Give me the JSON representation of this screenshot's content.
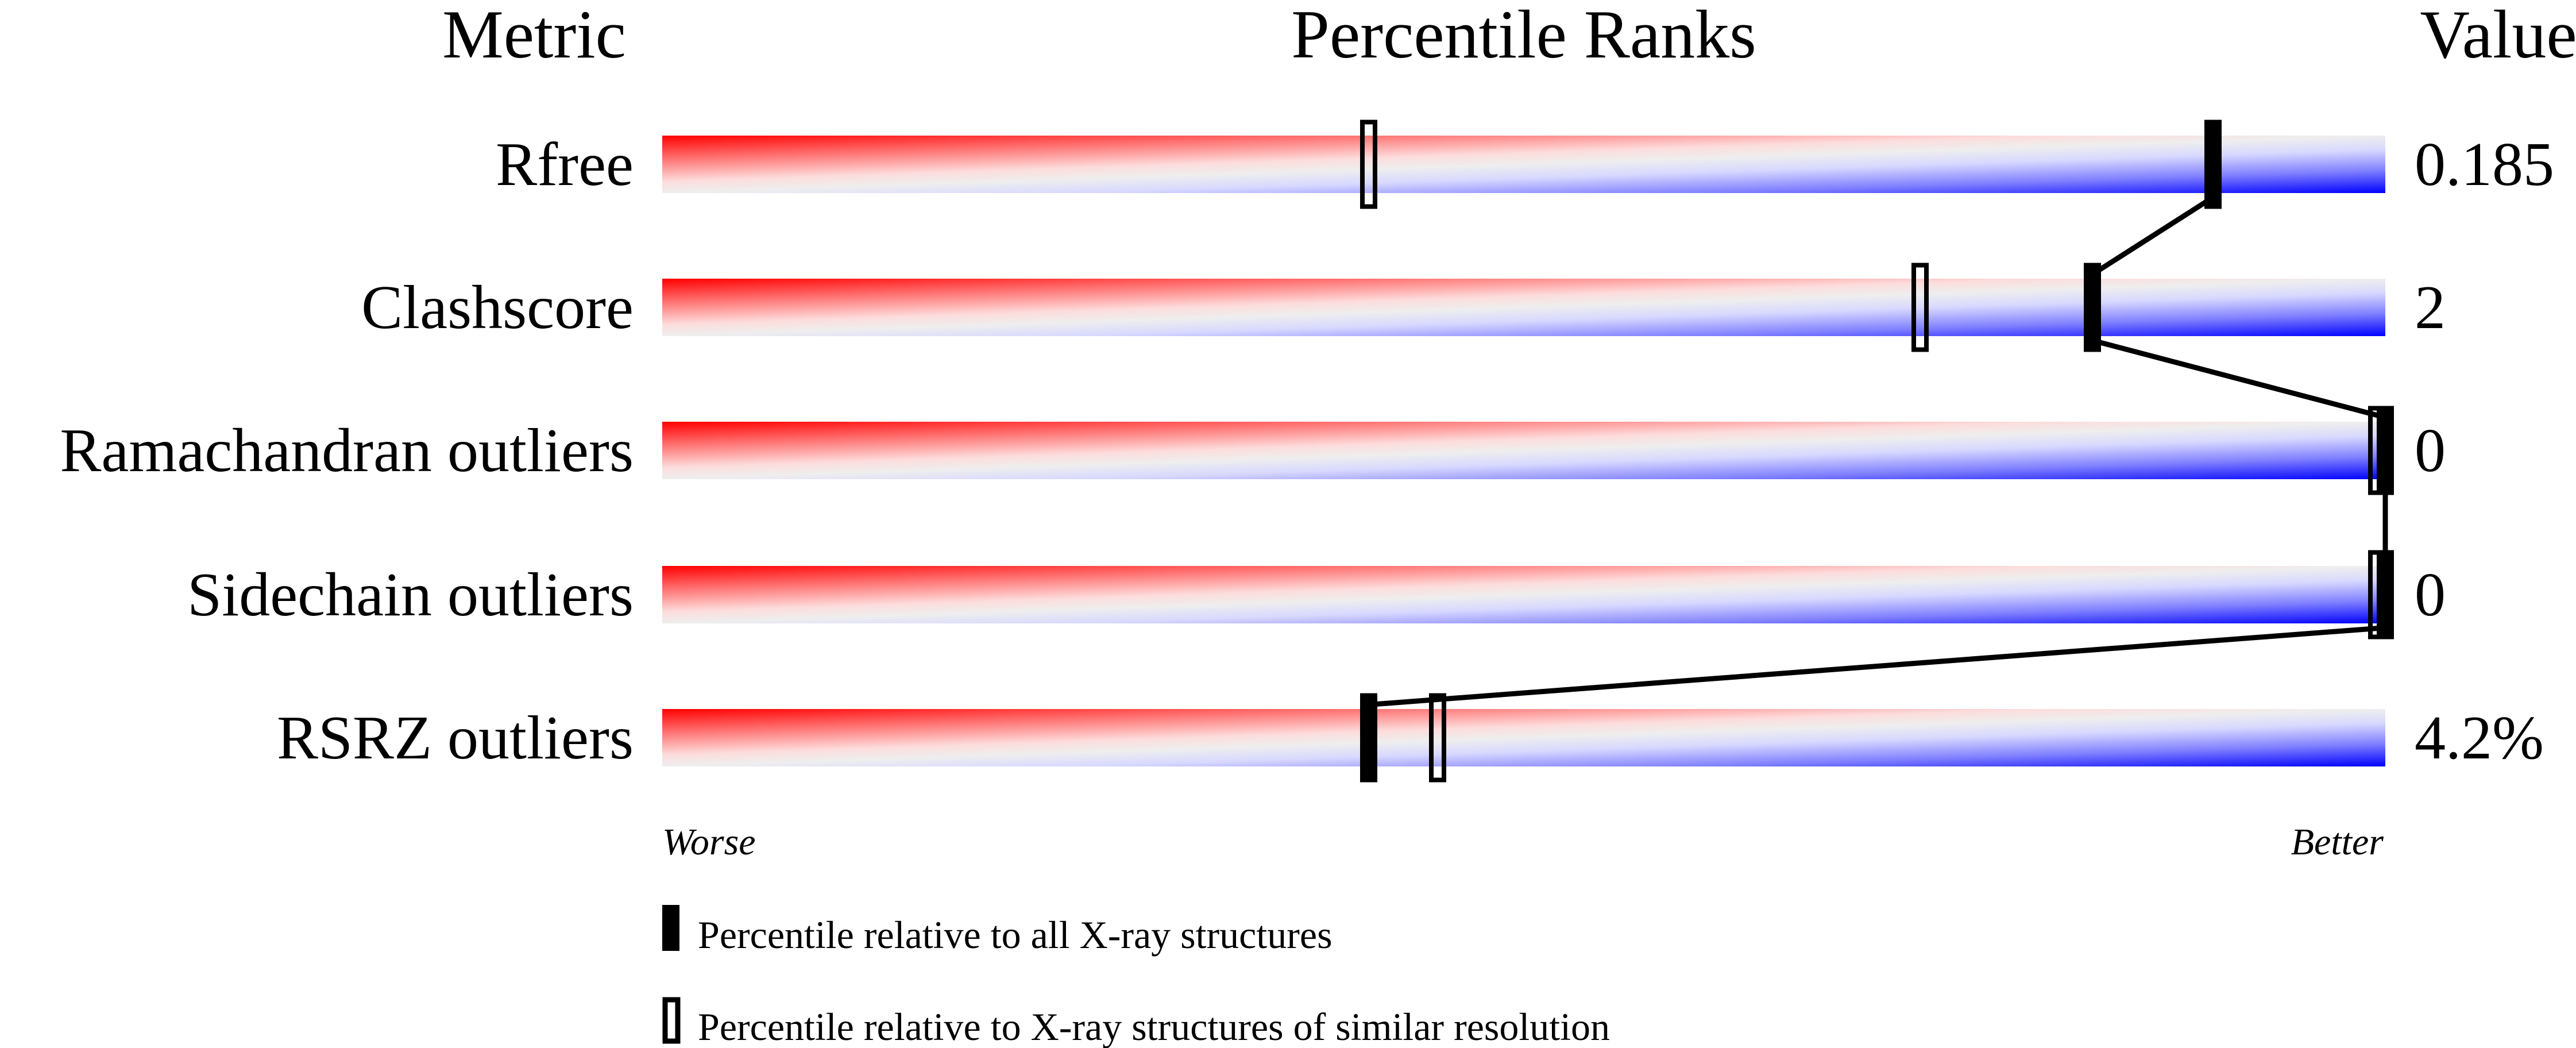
{
  "chart_data": {
    "type": "percentile-bar",
    "headers": {
      "metric": "Metric",
      "percentile": "Percentile Ranks",
      "value": "Value"
    },
    "xlim": [
      0,
      100
    ],
    "rows": [
      {
        "metric": "Rfree",
        "value": "0.185",
        "percentile_all": 90,
        "percentile_similar": 41
      },
      {
        "metric": "Clashscore",
        "value": "2",
        "percentile_all": 83,
        "percentile_similar": 73
      },
      {
        "metric": "Ramachandran outliers",
        "value": "0",
        "percentile_all": 100,
        "percentile_similar": 100
      },
      {
        "metric": "Sidechain outliers",
        "value": "0",
        "percentile_all": 100,
        "percentile_similar": 100
      },
      {
        "metric": "RSRZ outliers",
        "value": "4.2%",
        "percentile_all": 41,
        "percentile_similar": 45
      }
    ],
    "axis_labels": {
      "left": "Worse",
      "right": "Better"
    },
    "legend": [
      {
        "marker": "filled",
        "label": "Percentile relative to all X-ray structures"
      },
      {
        "marker": "hollow",
        "label": "Percentile relative to X-ray structures of similar resolution"
      }
    ],
    "colors": {
      "worse": "#ff0000",
      "middle": "#eeeeee",
      "better": "#0000ff"
    }
  }
}
